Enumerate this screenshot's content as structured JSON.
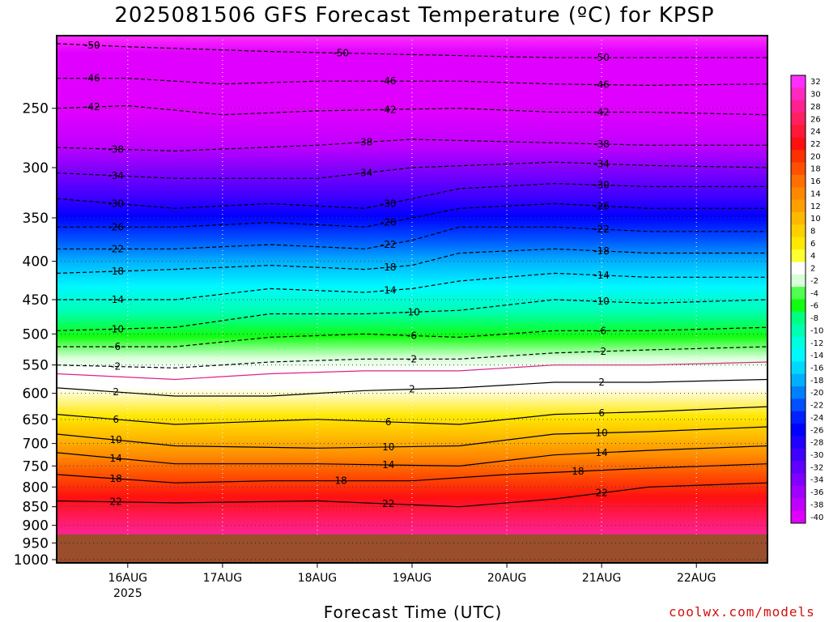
{
  "chart_data": {
    "type": "heatmap",
    "title": "2025081506 GFS Forecast Temperature (ºC) for KPSP",
    "xlabel": "Forecast Time (UTC)",
    "ylabel": "",
    "y_scale": "log",
    "y_inverted": true,
    "ylim": [
      1010,
      200
    ],
    "y_ticks": [
      250,
      300,
      350,
      400,
      450,
      500,
      550,
      600,
      650,
      700,
      750,
      800,
      850,
      900,
      950,
      1000
    ],
    "xlim": [
      "2025-08-15 06:00",
      "2025-08-22 18:00"
    ],
    "x_ticks": [
      {
        "label": "16AUG",
        "sublabel": "2025",
        "time": "2025-08-16 00:00"
      },
      {
        "label": "17AUG",
        "sublabel": "",
        "time": "2025-08-17 00:00"
      },
      {
        "label": "18AUG",
        "sublabel": "",
        "time": "2025-08-18 00:00"
      },
      {
        "label": "19AUG",
        "sublabel": "",
        "time": "2025-08-19 00:00"
      },
      {
        "label": "20AUG",
        "sublabel": "",
        "time": "2025-08-20 00:00"
      },
      {
        "label": "21AUG",
        "sublabel": "",
        "time": "2025-08-21 00:00"
      },
      {
        "label": "22AUG",
        "sublabel": "",
        "time": "2025-08-22 00:00"
      }
    ],
    "grid": true,
    "surface_pressure": 925,
    "colorbar_labels": [
      "32",
      "30",
      "28",
      "26",
      "24",
      "22",
      "20",
      "18",
      "16",
      "14",
      "12",
      "10",
      "8",
      "6",
      "4",
      "2",
      "-2",
      "-4",
      "-6",
      "-8",
      "-10",
      "-12",
      "-14",
      "-16",
      "-18",
      "-20",
      "-22",
      "-24",
      "-26",
      "-28",
      "-30",
      "-32",
      "-34",
      "-36",
      "-38",
      "-40"
    ],
    "colorbar_colors": [
      "#ff30ff",
      "#ff28c0",
      "#ff2090",
      "#ff2060",
      "#ff1838",
      "#ff1010",
      "#ff3000",
      "#ff5000",
      "#ff7000",
      "#ff8800",
      "#ffa000",
      "#ffb800",
      "#ffd000",
      "#ffe800",
      "#ffff30",
      "#ffffff",
      "#d8ffd8",
      "#50ff50",
      "#10ff10",
      "#00ff80",
      "#00ffb0",
      "#00ffe0",
      "#00f8ff",
      "#00d8ff",
      "#00b0ff",
      "#0080ff",
      "#0050ff",
      "#0020ff",
      "#0000ff",
      "#2000ff",
      "#4000ff",
      "#6000ff",
      "#8000ff",
      "#a000ff",
      "#c000ff",
      "#e000ff"
    ],
    "isotherms": [
      {
        "temp": 22,
        "label": "22",
        "points": [
          [
            "2025-08-15 06:00",
            835
          ],
          [
            "2025-08-16 12:00",
            840
          ],
          [
            "2025-08-18 00:00",
            835
          ],
          [
            "2025-08-19 12:00",
            850
          ],
          [
            "2025-08-20 12:00",
            830
          ],
          [
            "2025-08-21 12:00",
            800
          ],
          [
            "2025-08-22 18:00",
            790
          ]
        ]
      },
      {
        "temp": 18,
        "label": "18",
        "points": [
          [
            "2025-08-15 06:00",
            770
          ],
          [
            "2025-08-16 12:00",
            790
          ],
          [
            "2025-08-17 12:00",
            785
          ],
          [
            "2025-08-19 00:00",
            785
          ],
          [
            "2025-08-20 00:00",
            770
          ],
          [
            "2025-08-21 12:00",
            755
          ],
          [
            "2025-08-22 18:00",
            745
          ]
        ]
      },
      {
        "temp": 14,
        "label": "14",
        "points": [
          [
            "2025-08-15 06:00",
            720
          ],
          [
            "2025-08-16 12:00",
            745
          ],
          [
            "2025-08-18 00:00",
            745
          ],
          [
            "2025-08-19 12:00",
            750
          ],
          [
            "2025-08-20 12:00",
            725
          ],
          [
            "2025-08-21 12:00",
            715
          ],
          [
            "2025-08-22 18:00",
            705
          ]
        ]
      },
      {
        "temp": 10,
        "label": "10",
        "points": [
          [
            "2025-08-15 06:00",
            680
          ],
          [
            "2025-08-16 12:00",
            705
          ],
          [
            "2025-08-18 00:00",
            710
          ],
          [
            "2025-08-19 12:00",
            705
          ],
          [
            "2025-08-20 12:00",
            680
          ],
          [
            "2025-08-21 12:00",
            675
          ],
          [
            "2025-08-22 18:00",
            665
          ]
        ]
      },
      {
        "temp": 6,
        "label": "6",
        "points": [
          [
            "2025-08-15 06:00",
            640
          ],
          [
            "2025-08-16 12:00",
            660
          ],
          [
            "2025-08-18 00:00",
            650
          ],
          [
            "2025-08-19 12:00",
            660
          ],
          [
            "2025-08-20 12:00",
            640
          ],
          [
            "2025-08-21 12:00",
            635
          ],
          [
            "2025-08-22 18:00",
            625
          ]
        ]
      },
      {
        "temp": 2,
        "label": "2",
        "points": [
          [
            "2025-08-15 06:00",
            590
          ],
          [
            "2025-08-16 12:00",
            605
          ],
          [
            "2025-08-17 12:00",
            605
          ],
          [
            "2025-08-18 12:00",
            595
          ],
          [
            "2025-08-19 12:00",
            590
          ],
          [
            "2025-08-20 12:00",
            580
          ],
          [
            "2025-08-21 12:00",
            580
          ],
          [
            "2025-08-22 18:00",
            575
          ]
        ]
      },
      {
        "temp": 0,
        "label": "",
        "points": [
          [
            "2025-08-15 06:00",
            565
          ],
          [
            "2025-08-16 12:00",
            575
          ],
          [
            "2025-08-17 12:00",
            565
          ],
          [
            "2025-08-18 12:00",
            560
          ],
          [
            "2025-08-19 12:00",
            560
          ],
          [
            "2025-08-20 12:00",
            550
          ],
          [
            "2025-08-21 12:00",
            550
          ],
          [
            "2025-08-22 18:00",
            545
          ]
        ]
      },
      {
        "temp": -2,
        "label": "2",
        "points": [
          [
            "2025-08-15 06:00",
            550
          ],
          [
            "2025-08-16 12:00",
            555
          ],
          [
            "2025-08-17 12:00",
            545
          ],
          [
            "2025-08-18 12:00",
            540
          ],
          [
            "2025-08-19 12:00",
            540
          ],
          [
            "2025-08-20 12:00",
            530
          ],
          [
            "2025-08-21 12:00",
            525
          ],
          [
            "2025-08-22 18:00",
            520
          ]
        ]
      },
      {
        "temp": -6,
        "label": "6",
        "points": [
          [
            "2025-08-15 06:00",
            520
          ],
          [
            "2025-08-16 12:00",
            520
          ],
          [
            "2025-08-17 12:00",
            505
          ],
          [
            "2025-08-18 12:00",
            500
          ],
          [
            "2025-08-19 12:00",
            505
          ],
          [
            "2025-08-20 12:00",
            495
          ],
          [
            "2025-08-21 12:00",
            495
          ],
          [
            "2025-08-22 18:00",
            490
          ]
        ]
      },
      {
        "temp": -10,
        "label": "10",
        "points": [
          [
            "2025-08-15 06:00",
            495
          ],
          [
            "2025-08-16 12:00",
            490
          ],
          [
            "2025-08-17 12:00",
            470
          ],
          [
            "2025-08-18 12:00",
            470
          ],
          [
            "2025-08-19 12:00",
            465
          ],
          [
            "2025-08-20 12:00",
            450
          ],
          [
            "2025-08-21 12:00",
            455
          ],
          [
            "2025-08-22 18:00",
            450
          ]
        ]
      },
      {
        "temp": -14,
        "label": "14",
        "points": [
          [
            "2025-08-15 06:00",
            450
          ],
          [
            "2025-08-16 12:00",
            450
          ],
          [
            "2025-08-17 12:00",
            435
          ],
          [
            "2025-08-18 12:00",
            440
          ],
          [
            "2025-08-19 00:00",
            435
          ],
          [
            "2025-08-19 12:00",
            425
          ],
          [
            "2025-08-20 12:00",
            415
          ],
          [
            "2025-08-21 12:00",
            420
          ],
          [
            "2025-08-22 18:00",
            420
          ]
        ]
      },
      {
        "temp": -18,
        "label": "18",
        "points": [
          [
            "2025-08-15 06:00",
            415
          ],
          [
            "2025-08-16 12:00",
            410
          ],
          [
            "2025-08-17 12:00",
            405
          ],
          [
            "2025-08-18 12:00",
            410
          ],
          [
            "2025-08-19 00:00",
            405
          ],
          [
            "2025-08-19 12:00",
            390
          ],
          [
            "2025-08-20 12:00",
            385
          ],
          [
            "2025-08-21 12:00",
            390
          ],
          [
            "2025-08-22 18:00",
            390
          ]
        ]
      },
      {
        "temp": -22,
        "label": "22",
        "points": [
          [
            "2025-08-15 06:00",
            385
          ],
          [
            "2025-08-16 12:00",
            385
          ],
          [
            "2025-08-17 12:00",
            380
          ],
          [
            "2025-08-18 12:00",
            385
          ],
          [
            "2025-08-19 00:00",
            375
          ],
          [
            "2025-08-19 12:00",
            360
          ],
          [
            "2025-08-20 12:00",
            360
          ],
          [
            "2025-08-21 12:00",
            365
          ],
          [
            "2025-08-22 18:00",
            365
          ]
        ]
      },
      {
        "temp": -26,
        "label": "26",
        "points": [
          [
            "2025-08-15 06:00",
            360
          ],
          [
            "2025-08-16 12:00",
            360
          ],
          [
            "2025-08-17 12:00",
            355
          ],
          [
            "2025-08-18 12:00",
            360
          ],
          [
            "2025-08-19 00:00",
            350
          ],
          [
            "2025-08-19 12:00",
            340
          ],
          [
            "2025-08-20 12:00",
            335
          ],
          [
            "2025-08-21 12:00",
            340
          ],
          [
            "2025-08-22 18:00",
            340
          ]
        ]
      },
      {
        "temp": -30,
        "label": "30",
        "points": [
          [
            "2025-08-15 06:00",
            330
          ],
          [
            "2025-08-16 12:00",
            340
          ],
          [
            "2025-08-17 12:00",
            335
          ],
          [
            "2025-08-18 12:00",
            340
          ],
          [
            "2025-08-19 00:00",
            330
          ],
          [
            "2025-08-19 12:00",
            320
          ],
          [
            "2025-08-20 12:00",
            315
          ],
          [
            "2025-08-21 12:00",
            318
          ],
          [
            "2025-08-22 18:00",
            318
          ]
        ]
      },
      {
        "temp": -34,
        "label": "34",
        "points": [
          [
            "2025-08-15 06:00",
            305
          ],
          [
            "2025-08-16 12:00",
            310
          ],
          [
            "2025-08-18 00:00",
            310
          ],
          [
            "2025-08-19 00:00",
            300
          ],
          [
            "2025-08-20 12:00",
            295
          ],
          [
            "2025-08-21 12:00",
            298
          ],
          [
            "2025-08-22 18:00",
            300
          ]
        ]
      },
      {
        "temp": -38,
        "label": "38",
        "points": [
          [
            "2025-08-15 06:00",
            282
          ],
          [
            "2025-08-16 12:00",
            285
          ],
          [
            "2025-08-18 00:00",
            280
          ],
          [
            "2025-08-19 00:00",
            275
          ],
          [
            "2025-08-20 12:00",
            278
          ],
          [
            "2025-08-21 12:00",
            280
          ],
          [
            "2025-08-22 18:00",
            280
          ]
        ]
      },
      {
        "temp": -42,
        "label": "42",
        "points": [
          [
            "2025-08-15 06:00",
            250
          ],
          [
            "2025-08-16 00:00",
            248
          ],
          [
            "2025-08-17 00:00",
            255
          ],
          [
            "2025-08-18 00:00",
            252
          ],
          [
            "2025-08-19 12:00",
            250
          ],
          [
            "2025-08-20 12:00",
            253
          ],
          [
            "2025-08-21 12:00",
            253
          ],
          [
            "2025-08-22 18:00",
            255
          ]
        ]
      },
      {
        "temp": -46,
        "label": "46",
        "points": [
          [
            "2025-08-15 06:00",
            228
          ],
          [
            "2025-08-16 00:00",
            228
          ],
          [
            "2025-08-17 00:00",
            232
          ],
          [
            "2025-08-18 00:00",
            230
          ],
          [
            "2025-08-19 12:00",
            230
          ],
          [
            "2025-08-20 12:00",
            232
          ],
          [
            "2025-08-21 12:00",
            233
          ],
          [
            "2025-08-22 18:00",
            232
          ]
        ]
      },
      {
        "temp": -50,
        "label": "50",
        "points": [
          [
            "2025-08-15 06:00",
            205
          ],
          [
            "2025-08-16 00:00",
            207
          ],
          [
            "2025-08-17 12:00",
            210
          ],
          [
            "2025-08-19 00:00",
            212
          ],
          [
            "2025-08-20 12:00",
            214
          ],
          [
            "2025-08-21 12:00",
            214
          ],
          [
            "2025-08-22 18:00",
            214
          ]
        ]
      }
    ]
  },
  "watermark": "coolwx.com/models"
}
